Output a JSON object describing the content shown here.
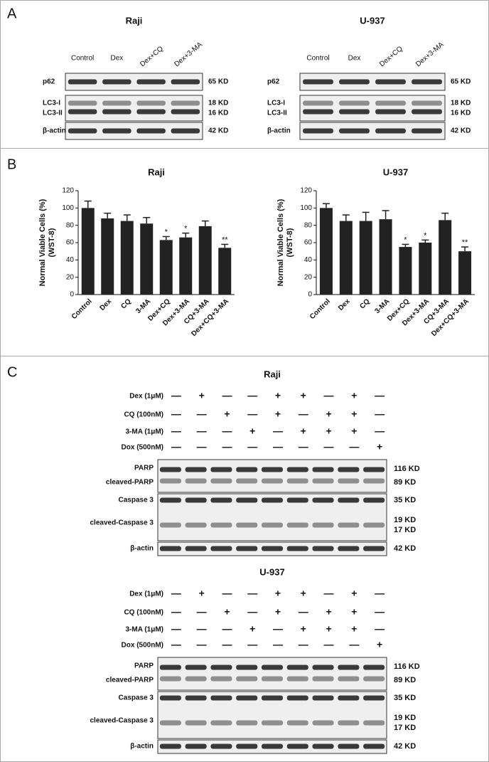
{
  "panel_a": {
    "letter": "A",
    "blots": [
      {
        "title": "Raji",
        "lanes": [
          "Control",
          "Dex",
          "Dex+CQ",
          "Dex+3-MA"
        ],
        "rows": [
          {
            "labels": [
              "p62"
            ],
            "kd": [
              "65 KD"
            ]
          },
          {
            "labels": [
              "LC3-I",
              "LC3-II"
            ],
            "kd": [
              "18 KD",
              "16 KD"
            ]
          },
          {
            "labels": [
              "β-actin"
            ],
            "kd": [
              "42 KD"
            ]
          }
        ]
      },
      {
        "title": "U-937",
        "lanes": [
          "Control",
          "Dex",
          "Dex+CQ",
          "Dex+3-MA"
        ],
        "rows": [
          {
            "labels": [
              "p62"
            ],
            "kd": [
              "65 KD"
            ]
          },
          {
            "labels": [
              "LC3-I",
              "LC3-II"
            ],
            "kd": [
              "18 KD",
              "16 KD"
            ]
          },
          {
            "labels": [
              "β-actin"
            ],
            "kd": [
              "42 KD"
            ]
          }
        ]
      }
    ]
  },
  "panel_b": {
    "letter": "B"
  },
  "chart_data": [
    {
      "type": "bar",
      "title": "Raji",
      "ylabel": "Normal Viable Cells (%)",
      "ylabel_sub": "(WST-8)",
      "categories": [
        "Control",
        "Dex",
        "CQ",
        "3-MA",
        "Dex+CQ",
        "Dex+3-MA",
        "CQ+3-MA",
        "Dex+CQ+3-MA"
      ],
      "values": [
        100,
        88,
        85,
        82,
        63,
        66,
        79,
        54
      ],
      "errors": [
        8,
        6,
        7,
        7,
        4,
        5,
        6,
        4
      ],
      "annotations": [
        null,
        null,
        null,
        null,
        "*",
        "*",
        null,
        "**"
      ],
      "color": "#222222",
      "ylim": [
        0,
        120
      ],
      "yticks": [
        0,
        20,
        40,
        60,
        80,
        100,
        120
      ]
    },
    {
      "type": "bar",
      "title": "U-937",
      "ylabel": "Normal Viable Cells (%)",
      "ylabel_sub": "(WST-8)",
      "categories": [
        "Control",
        "Dex",
        "CQ",
        "3-MA",
        "Dex+CQ",
        "Dex+3-MA",
        "CQ+3-MA",
        "Dex+CQ+3-MA"
      ],
      "values": [
        100,
        85,
        85,
        87,
        55,
        60,
        86,
        50
      ],
      "errors": [
        5,
        7,
        10,
        10,
        3,
        3,
        8,
        5
      ],
      "annotations": [
        null,
        null,
        null,
        null,
        "*",
        "*",
        null,
        "**"
      ],
      "color": "#222222",
      "ylim": [
        0,
        120
      ],
      "yticks": [
        0,
        20,
        40,
        60,
        80,
        100,
        120
      ]
    }
  ],
  "panel_c": {
    "letter": "C",
    "sections": [
      {
        "title": "Raji",
        "treatments": [
          {
            "label": "Dex (1μM)",
            "marks": [
              "—",
              "+",
              "—",
              "—",
              "+",
              "+",
              "—",
              "+",
              "—"
            ]
          },
          {
            "label": "CQ (100nM)",
            "marks": [
              "—",
              "—",
              "+",
              "—",
              "+",
              "—",
              "+",
              "+",
              "—"
            ]
          },
          {
            "label": "3-MA (1μM)",
            "marks": [
              "—",
              "—",
              "—",
              "+",
              "—",
              "+",
              "+",
              "+",
              "—"
            ]
          },
          {
            "label": "Dox (500nM)",
            "marks": [
              "—",
              "—",
              "—",
              "—",
              "—",
              "—",
              "—",
              "—",
              "+"
            ]
          }
        ],
        "rows": [
          {
            "labels": [
              "PARP",
              "cleaved-PARP"
            ],
            "kd": [
              "116 KD",
              "89 KD"
            ]
          },
          {
            "labels": [
              "Caspase 3",
              "cleaved-Caspase 3"
            ],
            "kd": [
              "35 KD",
              "19 KD",
              "17 KD"
            ]
          },
          {
            "labels": [
              "β-actin"
            ],
            "kd": [
              "42 KD"
            ]
          }
        ]
      },
      {
        "title": "U-937",
        "treatments": [
          {
            "label": "Dex (1μM)",
            "marks": [
              "—",
              "+",
              "—",
              "—",
              "+",
              "+",
              "—",
              "+",
              "—"
            ]
          },
          {
            "label": "CQ (100nM)",
            "marks": [
              "—",
              "—",
              "+",
              "—",
              "+",
              "—",
              "+",
              "+",
              "—"
            ]
          },
          {
            "label": "3-MA (1μM)",
            "marks": [
              "—",
              "—",
              "—",
              "+",
              "—",
              "+",
              "+",
              "+",
              "—"
            ]
          },
          {
            "label": "Dox (500nM)",
            "marks": [
              "—",
              "—",
              "—",
              "—",
              "—",
              "—",
              "—",
              "—",
              "+"
            ]
          }
        ],
        "rows": [
          {
            "labels": [
              "PARP",
              "cleaved-PARP"
            ],
            "kd": [
              "116 KD",
              "89 KD"
            ]
          },
          {
            "labels": [
              "Caspase 3",
              "cleaved-Caspase 3"
            ],
            "kd": [
              "35 KD",
              "19 KD",
              "17 KD"
            ]
          },
          {
            "labels": [
              "β-actin"
            ],
            "kd": [
              "42 KD"
            ]
          }
        ]
      }
    ]
  }
}
